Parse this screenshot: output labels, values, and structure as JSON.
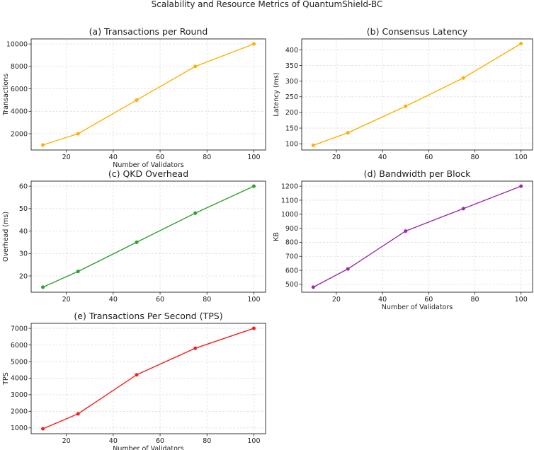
{
  "figure": {
    "title": "Scalability and Resource Metrics of QuantumShield-BC"
  },
  "chart_data": [
    {
      "type": "line",
      "title": "(a) Transactions per Round",
      "xlabel": "Number of Validators",
      "ylabel": "Transactions",
      "x": [
        10,
        25,
        50,
        75,
        100
      ],
      "series": [
        {
          "values": [
            1000,
            2000,
            5000,
            8000,
            10000
          ],
          "color": "#ffb000"
        }
      ],
      "xlim": [
        5,
        105
      ],
      "ylim": [
        550,
        10450
      ],
      "xticks": [
        20,
        40,
        60,
        80,
        100
      ],
      "yticks": [
        2000,
        4000,
        6000,
        8000,
        10000
      ],
      "grid": true
    },
    {
      "type": "line",
      "title": "(b) Consensus Latency",
      "xlabel": "",
      "ylabel": "Latency (ms)",
      "x": [
        10,
        25,
        50,
        75,
        100
      ],
      "series": [
        {
          "values": [
            95,
            135,
            220,
            310,
            420
          ],
          "color": "#ffb000"
        }
      ],
      "xlim": [
        5,
        105
      ],
      "ylim": [
        80,
        435
      ],
      "xticks": [
        20,
        40,
        60,
        80,
        100
      ],
      "yticks": [
        100,
        150,
        200,
        250,
        300,
        350,
        400
      ],
      "grid": true
    },
    {
      "type": "line",
      "title": "(c) QKD Overhead",
      "xlabel": "",
      "ylabel": "Overhead (ms)",
      "x": [
        10,
        25,
        50,
        75,
        100
      ],
      "series": [
        {
          "values": [
            15,
            22,
            35,
            48,
            60
          ],
          "color": "#2ca02c"
        }
      ],
      "xlim": [
        5,
        105
      ],
      "ylim": [
        12.75,
        62.25
      ],
      "xticks": [
        20,
        40,
        60,
        80,
        100
      ],
      "yticks": [
        20,
        30,
        40,
        50,
        60
      ],
      "grid": true
    },
    {
      "type": "line",
      "title": "(d) Bandwidth per Block",
      "xlabel": "Number of Validators",
      "ylabel": "KB",
      "x": [
        10,
        25,
        50,
        75,
        100
      ],
      "series": [
        {
          "values": [
            480,
            610,
            880,
            1040,
            1200
          ],
          "color": "#9c27b0"
        }
      ],
      "xlim": [
        5,
        105
      ],
      "ylim": [
        444,
        1236
      ],
      "xticks": [
        20,
        40,
        60,
        80,
        100
      ],
      "yticks": [
        500,
        600,
        700,
        800,
        900,
        1000,
        1100,
        1200
      ],
      "grid": true
    },
    {
      "type": "line",
      "title": "(e) Transactions Per Second (TPS)",
      "xlabel": "Number of Validators",
      "ylabel": "TPS",
      "x": [
        10,
        25,
        50,
        75,
        100
      ],
      "series": [
        {
          "values": [
            950,
            1850,
            4200,
            5800,
            7000
          ],
          "color": "#ff1a1a"
        }
      ],
      "xlim": [
        5,
        105
      ],
      "ylim": [
        650,
        7300
      ],
      "xticks": [
        20,
        40,
        60,
        80,
        100
      ],
      "yticks": [
        1000,
        2000,
        3000,
        4000,
        5000,
        6000,
        7000
      ],
      "grid": true
    }
  ]
}
